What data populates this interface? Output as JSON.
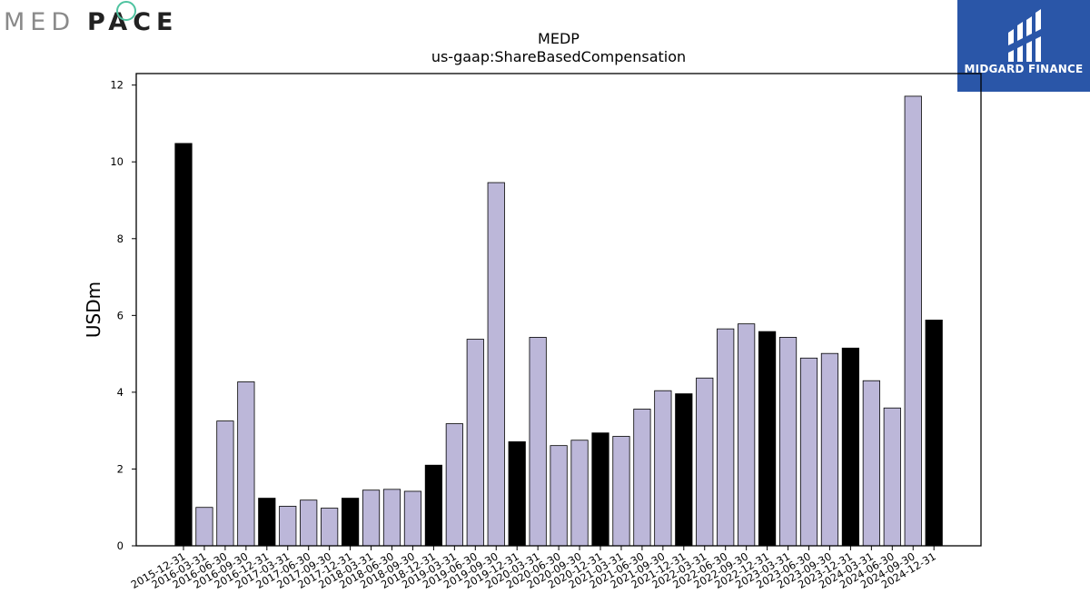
{
  "logos": {
    "left_brand": "MEDPACE",
    "right_brand": "MIDGARD FINANCE"
  },
  "colors": {
    "fy_bar": "#000000",
    "quarter_bar": "#bcb7d9",
    "logo_right_bg": "#2a56a8",
    "logo_left_gray": "#8a8a8a",
    "logo_left_dark": "#222222",
    "logo_accent": "#4fc3a0"
  },
  "chart_data": {
    "type": "bar",
    "title": "MEDP",
    "subtitle": "us-gaap:ShareBasedCompensation",
    "xlabel": "",
    "ylabel": "USDm",
    "ylim": [
      0,
      12.3
    ],
    "yticks": [
      0,
      2,
      4,
      6,
      8,
      10,
      12
    ],
    "grid": false,
    "categories": [
      "2015-12-31",
      "2016-03-31",
      "2016-06-30",
      "2016-09-30",
      "2016-12-31",
      "2017-03-31",
      "2017-06-30",
      "2017-09-30",
      "2017-12-31",
      "2018-03-31",
      "2018-06-30",
      "2018-09-30",
      "2018-12-31",
      "2019-03-31",
      "2019-06-30",
      "2019-09-30",
      "2019-12-31",
      "2020-03-31",
      "2020-06-30",
      "2020-09-30",
      "2020-12-31",
      "2021-03-31",
      "2021-06-30",
      "2021-09-30",
      "2021-12-31",
      "2022-03-31",
      "2022-06-30",
      "2022-09-30",
      "2022-12-31",
      "2023-03-31",
      "2023-06-30",
      "2023-09-30",
      "2023-12-31",
      "2024-03-31",
      "2024-06-30",
      "2024-09-30",
      "2024-12-31"
    ],
    "values": [
      10.48,
      1.0,
      3.25,
      4.27,
      1.24,
      1.03,
      1.19,
      0.98,
      1.24,
      1.45,
      1.47,
      1.42,
      2.1,
      3.18,
      5.38,
      9.46,
      2.71,
      5.43,
      2.61,
      2.75,
      2.94,
      2.85,
      3.56,
      4.04,
      3.96,
      4.37,
      5.65,
      5.78,
      5.58,
      5.43,
      4.89,
      5.01,
      5.15,
      4.3,
      3.59,
      11.71,
      5.88
    ]
  }
}
